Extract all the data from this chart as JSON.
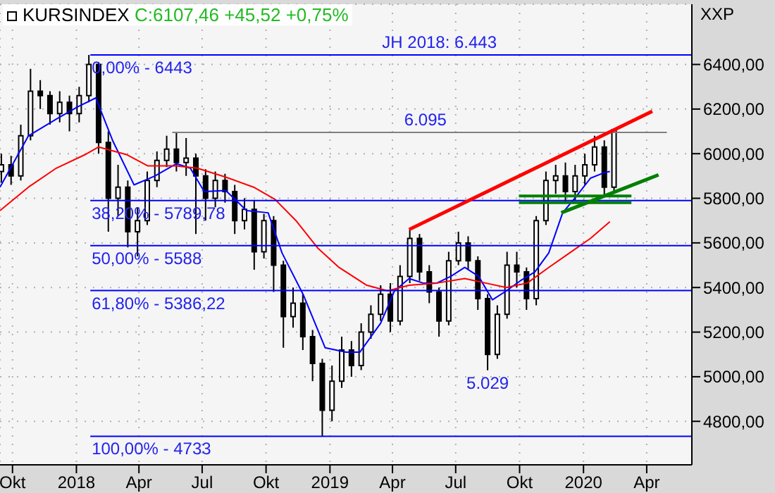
{
  "chart_data": {
    "type": "candlestick",
    "title": "KURSINDEX",
    "subtitle": "C:6107,46 +45,52 +0,75%",
    "x": [
      "2017-09-15",
      "2017-09-29",
      "2017-10-13",
      "2017-10-27",
      "2017-11-10",
      "2017-11-24",
      "2017-12-08",
      "2017-12-22",
      "2018-01-05",
      "2018-01-19",
      "2018-02-02",
      "2018-02-16",
      "2018-03-02",
      "2018-03-16",
      "2018-03-30",
      "2018-04-13",
      "2018-04-27",
      "2018-05-11",
      "2018-05-25",
      "2018-06-08",
      "2018-06-22",
      "2018-07-06",
      "2018-07-20",
      "2018-08-03",
      "2018-08-17",
      "2018-08-31",
      "2018-09-14",
      "2018-09-28",
      "2018-10-12",
      "2018-10-26",
      "2018-11-09",
      "2018-11-23",
      "2018-12-07",
      "2018-12-21",
      "2019-01-04",
      "2019-01-18",
      "2019-02-01",
      "2019-02-15",
      "2019-03-01",
      "2019-03-15",
      "2019-03-29",
      "2019-04-12",
      "2019-04-26",
      "2019-05-10",
      "2019-05-24",
      "2019-06-07",
      "2019-06-21",
      "2019-07-05",
      "2019-07-19",
      "2019-08-02",
      "2019-08-16",
      "2019-08-30",
      "2019-09-13",
      "2019-09-27",
      "2019-10-11",
      "2019-10-25",
      "2019-11-08",
      "2019-11-22",
      "2019-12-06",
      "2019-12-20",
      "2020-01-03",
      "2020-01-17",
      "2020-01-31",
      "2020-02-14"
    ],
    "ohlc": [
      [
        5920,
        6000,
        5870,
        5950
      ],
      [
        5950,
        5990,
        5860,
        5900
      ],
      [
        5900,
        6130,
        5880,
        6080
      ],
      [
        6080,
        6380,
        6060,
        6280
      ],
      [
        6280,
        6330,
        6200,
        6260
      ],
      [
        6260,
        6280,
        6130,
        6180
      ],
      [
        6180,
        6280,
        6140,
        6230
      ],
      [
        6230,
        6260,
        6100,
        6180
      ],
      [
        6180,
        6300,
        6140,
        6260
      ],
      [
        6260,
        6443,
        6230,
        6400
      ],
      [
        6400,
        6410,
        6000,
        6050
      ],
      [
        6050,
        6100,
        5650,
        5800
      ],
      [
        5800,
        5950,
        5720,
        5850
      ],
      [
        5850,
        5880,
        5580,
        5650
      ],
      [
        5650,
        5760,
        5540,
        5700
      ],
      [
        5700,
        5920,
        5680,
        5880
      ],
      [
        5880,
        6010,
        5850,
        5970
      ],
      [
        5970,
        6080,
        5940,
        6020
      ],
      [
        6020,
        6095,
        5920,
        5960
      ],
      [
        5960,
        6070,
        5900,
        5980
      ],
      [
        5980,
        6000,
        5640,
        5900
      ],
      [
        5900,
        5930,
        5700,
        5800
      ],
      [
        5800,
        5920,
        5760,
        5880
      ],
      [
        5880,
        5910,
        5780,
        5830
      ],
      [
        5830,
        5860,
        5640,
        5700
      ],
      [
        5700,
        5800,
        5660,
        5750
      ],
      [
        5750,
        5790,
        5480,
        5560
      ],
      [
        5560,
        5730,
        5530,
        5700
      ],
      [
        5700,
        5720,
        5380,
        5500
      ],
      [
        5500,
        5520,
        5130,
        5270
      ],
      [
        5270,
        5400,
        5220,
        5330
      ],
      [
        5330,
        5370,
        5120,
        5180
      ],
      [
        5180,
        5210,
        4980,
        5060
      ],
      [
        5060,
        5080,
        4733,
        4850
      ],
      [
        4850,
        5050,
        4800,
        4980
      ],
      [
        4980,
        5180,
        4950,
        5120
      ],
      [
        5120,
        5160,
        5000,
        5050
      ],
      [
        5050,
        5240,
        5030,
        5200
      ],
      [
        5200,
        5320,
        5170,
        5280
      ],
      [
        5280,
        5410,
        5250,
        5370
      ],
      [
        5370,
        5420,
        5200,
        5250
      ],
      [
        5250,
        5500,
        5230,
        5450
      ],
      [
        5450,
        5660,
        5420,
        5620
      ],
      [
        5620,
        5640,
        5430,
        5470
      ],
      [
        5470,
        5500,
        5330,
        5380
      ],
      [
        5380,
        5400,
        5180,
        5250
      ],
      [
        5250,
        5560,
        5230,
        5520
      ],
      [
        5520,
        5650,
        5500,
        5600
      ],
      [
        5600,
        5630,
        5480,
        5520
      ],
      [
        5520,
        5540,
        5300,
        5350
      ],
      [
        5350,
        5370,
        5029,
        5100
      ],
      [
        5100,
        5320,
        5080,
        5280
      ],
      [
        5280,
        5560,
        5260,
        5500
      ],
      [
        5500,
        5560,
        5400,
        5470
      ],
      [
        5470,
        5490,
        5300,
        5350
      ],
      [
        5350,
        5720,
        5320,
        5700
      ],
      [
        5700,
        5920,
        5680,
        5880
      ],
      [
        5880,
        5950,
        5820,
        5900
      ],
      [
        5900,
        5960,
        5780,
        5830
      ],
      [
        5830,
        5950,
        5790,
        5900
      ],
      [
        5900,
        6000,
        5860,
        5950
      ],
      [
        5950,
        6080,
        5920,
        6030
      ],
      [
        6030,
        6060,
        5810,
        5850
      ],
      [
        5850,
        6110,
        5830,
        6107
      ]
    ],
    "color": "#000000",
    "series": [
      {
        "type": "line",
        "color": "#0000ff",
        "x": [
          "2017-09-13",
          "2017-10-24",
          "2017-12-03",
          "2018-01-03",
          "2018-01-29",
          "2018-02-22",
          "2018-03-25",
          "2018-04-24",
          "2018-05-25",
          "2018-06-14",
          "2018-07-04",
          "2018-08-04",
          "2018-09-03",
          "2018-10-04",
          "2018-10-24",
          "2018-11-24",
          "2018-12-25",
          "2019-01-24",
          "2019-02-13",
          "2019-03-15",
          "2019-04-04",
          "2019-04-25",
          "2019-05-15",
          "2019-06-04",
          "2019-06-24",
          "2019-07-14",
          "2019-08-03",
          "2019-08-23",
          "2019-09-12",
          "2019-10-02",
          "2019-10-23",
          "2019-11-12",
          "2019-12-02",
          "2019-12-22",
          "2020-01-11",
          "2020-01-31",
          "2020-02-08"
        ],
        "values": [
          5850,
          6080,
          6155,
          6210,
          6250,
          6060,
          5860,
          5900,
          5955,
          5935,
          5830,
          5835,
          5745,
          5735,
          5555,
          5365,
          5130,
          5110,
          5110,
          5240,
          5385,
          5440,
          5420,
          5420,
          5450,
          5490,
          5450,
          5345,
          5385,
          5430,
          5470,
          5555,
          5735,
          5810,
          5890,
          5915,
          5920
        ]
      },
      {
        "type": "line",
        "color": "#ff0000",
        "x": [
          "2017-09-13",
          "2017-10-24",
          "2017-12-03",
          "2018-01-13",
          "2018-02-02",
          "2018-03-15",
          "2018-04-14",
          "2018-05-25",
          "2018-06-24",
          "2018-08-04",
          "2018-09-13",
          "2018-10-14",
          "2018-11-13",
          "2018-12-15",
          "2019-01-14",
          "2019-02-23",
          "2019-03-25",
          "2019-04-25",
          "2019-06-04",
          "2019-07-14",
          "2019-08-13",
          "2019-09-12",
          "2019-10-12",
          "2019-11-12",
          "2019-12-12",
          "2020-01-11",
          "2020-02-08"
        ],
        "values": [
          5745,
          5850,
          5935,
          5995,
          6030,
          5995,
          5945,
          5945,
          5935,
          5895,
          5850,
          5795,
          5700,
          5575,
          5490,
          5410,
          5385,
          5410,
          5420,
          5440,
          5420,
          5400,
          5420,
          5490,
          5555,
          5620,
          5695
        ]
      },
      {
        "type": "line",
        "color": "#0000ff",
        "x": [
          "2018-01-21",
          "2020-06-05"
        ],
        "values": [
          6443,
          6443
        ]
      },
      {
        "type": "line",
        "color": "#0000ff",
        "x": [
          "2018-01-21",
          "2020-06-05"
        ],
        "values": [
          5789.78,
          5789.78
        ]
      },
      {
        "type": "line",
        "color": "#0000ff",
        "x": [
          "2018-01-21",
          "2020-06-05"
        ],
        "values": [
          5588,
          5588
        ]
      },
      {
        "type": "line",
        "color": "#0000ff",
        "x": [
          "2018-01-21",
          "2020-06-05"
        ],
        "values": [
          5386.22,
          5386.22
        ]
      },
      {
        "type": "line",
        "color": "#0000ff",
        "x": [
          "2018-01-21",
          "2020-06-05"
        ],
        "values": [
          4733,
          4733
        ]
      },
      {
        "type": "line",
        "color": "#808080",
        "x": [
          "2018-05-19",
          "2020-04-30"
        ],
        "values": [
          6095,
          6095
        ]
      },
      {
        "type": "line",
        "color": "#ff0000",
        "x": [
          "2019-04-25",
          "2020-04-09"
        ],
        "values": [
          5660,
          6190
        ]
      },
      {
        "type": "line",
        "color": "#008000",
        "x": [
          "2019-11-30",
          "2020-04-18"
        ],
        "values": [
          5735,
          5905
        ]
      },
      {
        "type": "line",
        "color": "#008000",
        "x": [
          "2019-09-30",
          "2020-03-10"
        ],
        "values": [
          5810,
          5810
        ]
      },
      {
        "type": "line",
        "color": "#008000",
        "x": [
          "2019-09-30",
          "2020-03-10"
        ],
        "values": [
          5780,
          5780
        ]
      }
    ],
    "annotations": [
      {
        "text": "0,00% - 6443",
        "x": "2018-01-21",
        "y": 6443
      },
      {
        "text": "38,20% - 5789,78",
        "x": "2018-01-21",
        "y": 5789.78
      },
      {
        "text": "50,00% - 5588",
        "x": "2018-01-21",
        "y": 5588
      },
      {
        "text": "61,80% - 5386,22",
        "x": "2018-01-21",
        "y": 5386.22
      },
      {
        "text": "100,00% - 4733",
        "x": "2018-01-21",
        "y": 4733
      },
      {
        "text": "JH 2018: 6.443",
        "x": "2019-03-15",
        "y": 6443
      },
      {
        "text": "6.095",
        "x": "2019-04-16",
        "y": 6095
      },
      {
        "text": "5.029",
        "x": "2019-08-16",
        "y": 5029
      },
      "XXP"
    ],
    "xlim": [
      "2017-09-13",
      "2020-06-05"
    ],
    "xticks": [
      {
        "value": "2017-10-01",
        "label": "Okt"
      },
      {
        "value": "2018-01-01",
        "label": "2018"
      },
      {
        "value": "2018-04-01",
        "label": "Apr"
      },
      {
        "value": "2018-07-01",
        "label": "Jul"
      },
      {
        "value": "2018-10-01",
        "label": "Okt"
      },
      {
        "value": "2019-01-01",
        "label": "2019"
      },
      {
        "value": "2019-04-01",
        "label": "Apr"
      },
      {
        "value": "2019-07-01",
        "label": "Jul"
      },
      {
        "value": "2019-10-01",
        "label": "Okt"
      },
      {
        "value": "2020-01-01",
        "label": "2020"
      },
      {
        "value": "2020-04-01",
        "label": "Apr"
      }
    ],
    "ylim": [
      4605,
      6670
    ],
    "yticks": [
      {
        "value": 4800,
        "label": "4800,00"
      },
      {
        "value": 5000,
        "label": "5000,00"
      },
      {
        "value": 5200,
        "label": "5200,00"
      },
      {
        "value": 5400,
        "label": "5400,00"
      },
      {
        "value": 5600,
        "label": "5600,00"
      },
      {
        "value": 5800,
        "label": "5800,00"
      },
      {
        "value": 6000,
        "label": "6000,00"
      },
      {
        "value": 6200,
        "label": "6200,00"
      },
      {
        "value": 6400,
        "label": "6400,00"
      }
    ],
    "grid": true
  }
}
